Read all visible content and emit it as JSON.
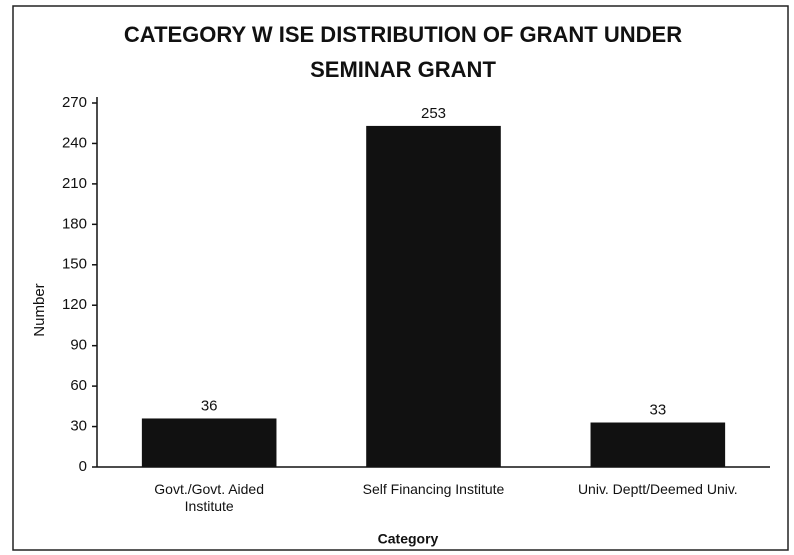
{
  "chart_data": {
    "type": "bar",
    "title": [
      "CATEGORY W ISE DISTRIBUTION OF GRANT UNDER",
      "SEMINAR GRANT"
    ],
    "x_label": "Category",
    "y_label": "Number",
    "categories": [
      "Govt./Govt. Aided Institute",
      "Self Financing Institute",
      "Univ. Deptt/Deemed Univ."
    ],
    "values": [
      36,
      253,
      33
    ],
    "color": "#111111",
    "ylim": [
      0,
      270
    ],
    "yticks": [
      0,
      30,
      60,
      90,
      120,
      150,
      180,
      210,
      240,
      270
    ],
    "grid": false
  }
}
